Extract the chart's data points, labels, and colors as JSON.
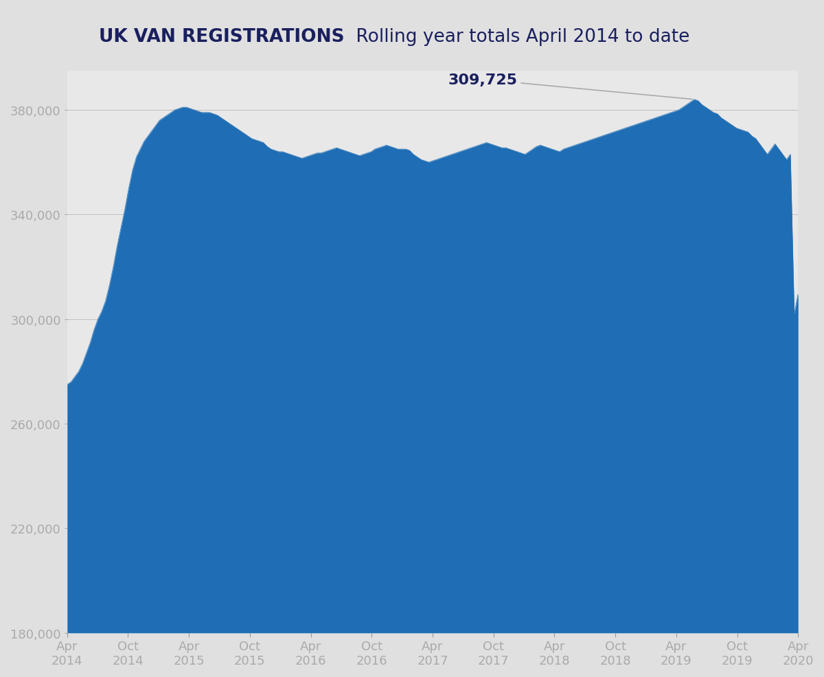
{
  "title_bold": "UK VAN REGISTRATIONS",
  "title_regular": " Rolling year totals April 2014 to date",
  "background_color": "#e0e0e0",
  "plot_bg_color": "#d0d0d0",
  "inner_bg_color": "#e8e8e8",
  "fill_color": "#1f6eb5",
  "annotation_value": "309,725",
  "annotation_color": "#1a1f5e",
  "yticks": [
    180000,
    220000,
    260000,
    300000,
    340000,
    380000
  ],
  "ytick_labels": [
    "180,000",
    "220,000",
    "260,000",
    "300,000",
    "340,000",
    "380,000"
  ],
  "xtick_labels": [
    "Apr\n2014",
    "Oct\n2014",
    "Apr\n2015",
    "Oct\n2015",
    "Apr\n2016",
    "Oct\n2016",
    "Apr\n2017",
    "Oct\n2017",
    "Apr\n2018",
    "Oct\n2018",
    "Apr\n2019",
    "Oct\n2019",
    "Apr\n2020"
  ],
  "ylim": [
    180000,
    395000
  ],
  "data_y": [
    275000,
    276000,
    278000,
    280000,
    283000,
    287000,
    291000,
    296000,
    300000,
    303000,
    307000,
    313000,
    320000,
    328000,
    335000,
    342000,
    350000,
    357000,
    362000,
    365000,
    368000,
    370000,
    372000,
    374000,
    376000,
    377000,
    378000,
    379000,
    380000,
    380500,
    381000,
    381000,
    380500,
    380000,
    379500,
    379000,
    379000,
    379000,
    378500,
    378000,
    377000,
    376000,
    375000,
    374000,
    373000,
    372000,
    371000,
    370000,
    369000,
    368500,
    368000,
    367500,
    366000,
    365000,
    364500,
    364000,
    364000,
    363500,
    363000,
    362500,
    362000,
    361500,
    362000,
    362500,
    363000,
    363500,
    363500,
    364000,
    364500,
    365000,
    365500,
    365000,
    364500,
    364000,
    363500,
    363000,
    362500,
    363000,
    363500,
    364000,
    365000,
    365500,
    366000,
    366500,
    366000,
    365500,
    365000,
    365000,
    365000,
    364500,
    363000,
    362000,
    361000,
    360500,
    360000,
    360500,
    361000,
    361500,
    362000,
    362500,
    363000,
    363500,
    364000,
    364500,
    365000,
    365500,
    366000,
    366500,
    367000,
    367500,
    367000,
    366500,
    366000,
    365500,
    365500,
    365000,
    364500,
    364000,
    363500,
    363000,
    364000,
    365000,
    366000,
    366500,
    366000,
    365500,
    365000,
    364500,
    364000,
    365000,
    365500,
    366000,
    366500,
    367000,
    367500,
    368000,
    368500,
    369000,
    369500,
    370000,
    370500,
    371000,
    371500,
    372000,
    372500,
    373000,
    373500,
    374000,
    374500,
    375000,
    375500,
    376000,
    376500,
    377000,
    377500,
    378000,
    378500,
    379000,
    379500,
    380000,
    381000,
    382000,
    383000,
    384000,
    383500,
    382000,
    381000,
    380000,
    379000,
    378500,
    377000,
    376000,
    375000,
    374000,
    373000,
    372500,
    372000,
    371500,
    370000,
    369000,
    367000,
    365000,
    363000,
    365000,
    367000,
    365000,
    363000,
    361000,
    363000,
    302000,
    309725
  ],
  "peak_idx": 163,
  "peak_value": 384000,
  "drop_idx": 189,
  "drop_value": 302000,
  "last_value": 309725,
  "line_color": "#aaaaaa",
  "tick_color": "#aaaaaa",
  "title_bold_color": "#1a1f5e",
  "title_regular_color": "#1a1f5e"
}
